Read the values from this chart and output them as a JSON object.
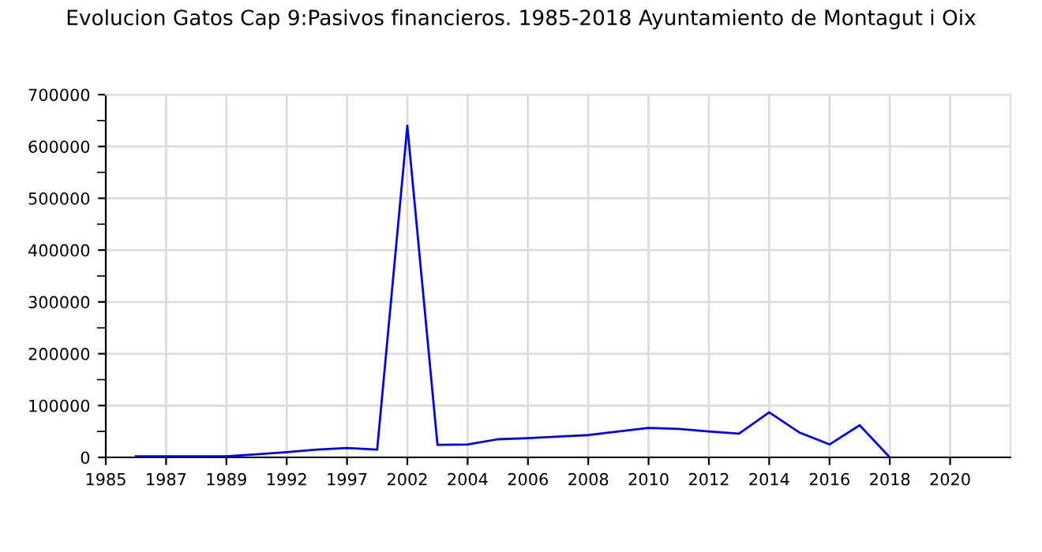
{
  "chart_data": {
    "type": "line",
    "title": "Evolucion Gatos Cap 9:Pasivos financieros. 1985-2018 Ayuntamiento de Montagut i Oix",
    "categories": [
      "1985",
      null,
      "1987",
      null,
      "1989",
      null,
      "1992",
      null,
      "1997",
      null,
      "2002",
      null,
      "2004",
      null,
      "2006",
      null,
      "2008",
      null,
      "2010",
      null,
      "2012",
      null,
      "2014",
      null,
      "2016",
      null,
      "2018",
      null,
      "2020",
      null,
      null
    ],
    "series": [
      {
        "color": "#0000ff",
        "values": [
          null,
          2000,
          2000,
          2000,
          2000,
          6000,
          10000,
          15000,
          18000,
          15000,
          640000,
          24000,
          25000,
          35000,
          37000,
          40000,
          43000,
          50000,
          57000,
          55000,
          50000,
          46000,
          87000,
          48000,
          25000,
          62000,
          0,
          null,
          null,
          null,
          null
        ]
      }
    ],
    "ylim": [
      0,
      700000
    ],
    "yticks": [
      0,
      {
        "value": 50000,
        "label": null
      },
      100000,
      {
        "value": 150000,
        "label": null
      },
      200000,
      {
        "value": 250000,
        "label": null
      },
      300000,
      {
        "value": 350000,
        "label": null
      },
      400000,
      {
        "value": 450000,
        "label": null
      },
      500000,
      {
        "value": 550000,
        "label": null
      },
      600000,
      {
        "value": 650000,
        "label": null
      },
      700000
    ],
    "grid": true
  }
}
